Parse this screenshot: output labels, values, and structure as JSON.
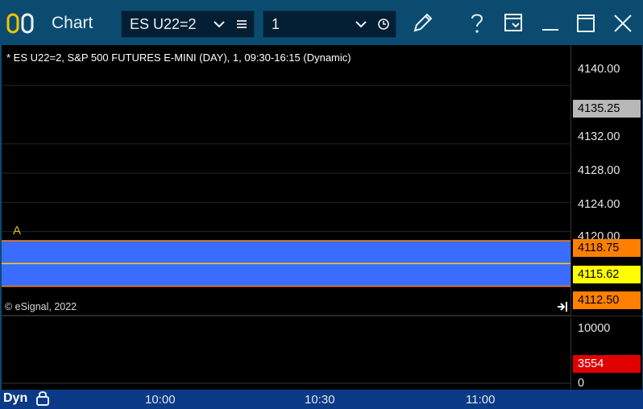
{
  "window": {
    "title": "Chart"
  },
  "toolbar": {
    "symbol": "ES U22=2",
    "interval": "1",
    "icons": [
      "app-icon",
      "chevron-down-icon",
      "menu-icon",
      "chevron-down-icon",
      "clock-icon",
      "pencil-icon",
      "help-icon",
      "window-options-icon",
      "minimize-icon",
      "maximize-icon",
      "close-icon"
    ]
  },
  "chart": {
    "legend": "* ES U22=2, S&P 500 FUTURES E-MINI (DAY), 1, 09:30-16:15 (Dynamic)",
    "copyright": "© eSignal, 2022",
    "annotation_label": "A",
    "price_ticks": [
      "4140.00",
      "4132.00",
      "4128.00",
      "4124.00",
      "4120.00"
    ],
    "price_tags": {
      "last": "4135.25",
      "upper": "4118.75",
      "current": "4115.62",
      "lower": "4112.50"
    },
    "volume_ticks": [
      "10000",
      "0"
    ],
    "volume_tag": "3554",
    "time_ticks": [
      "10:00",
      "10:30",
      "11:00"
    ],
    "colors": {
      "up": "#ffffff",
      "down": "#1a2ee8",
      "band": "#3a6dff",
      "band_line": "#ffd000",
      "tag_orange": "#ff8000",
      "tag_yellow": "#ffff00",
      "tag_gray": "#b8b8b8",
      "vol_up": "#2fbf2f",
      "vol_down": "#d62b2b",
      "vol_tag": "#e00000"
    }
  },
  "chart_data": {
    "type": "candlestick",
    "ylim": [
      4110.7,
      4142.0
    ],
    "y_ticks": [
      4140,
      4132,
      4128,
      4124,
      4120
    ],
    "x_ticks": [
      "10:00",
      "10:30",
      "11:00"
    ],
    "band": {
      "upper": 4118.75,
      "mid": 4115.62,
      "lower": 4112.5
    },
    "last_price": 4135.25,
    "volume_ylim": [
      0,
      10000
    ],
    "volume_last": 3554
  },
  "status": {
    "mode": "Dyn"
  }
}
